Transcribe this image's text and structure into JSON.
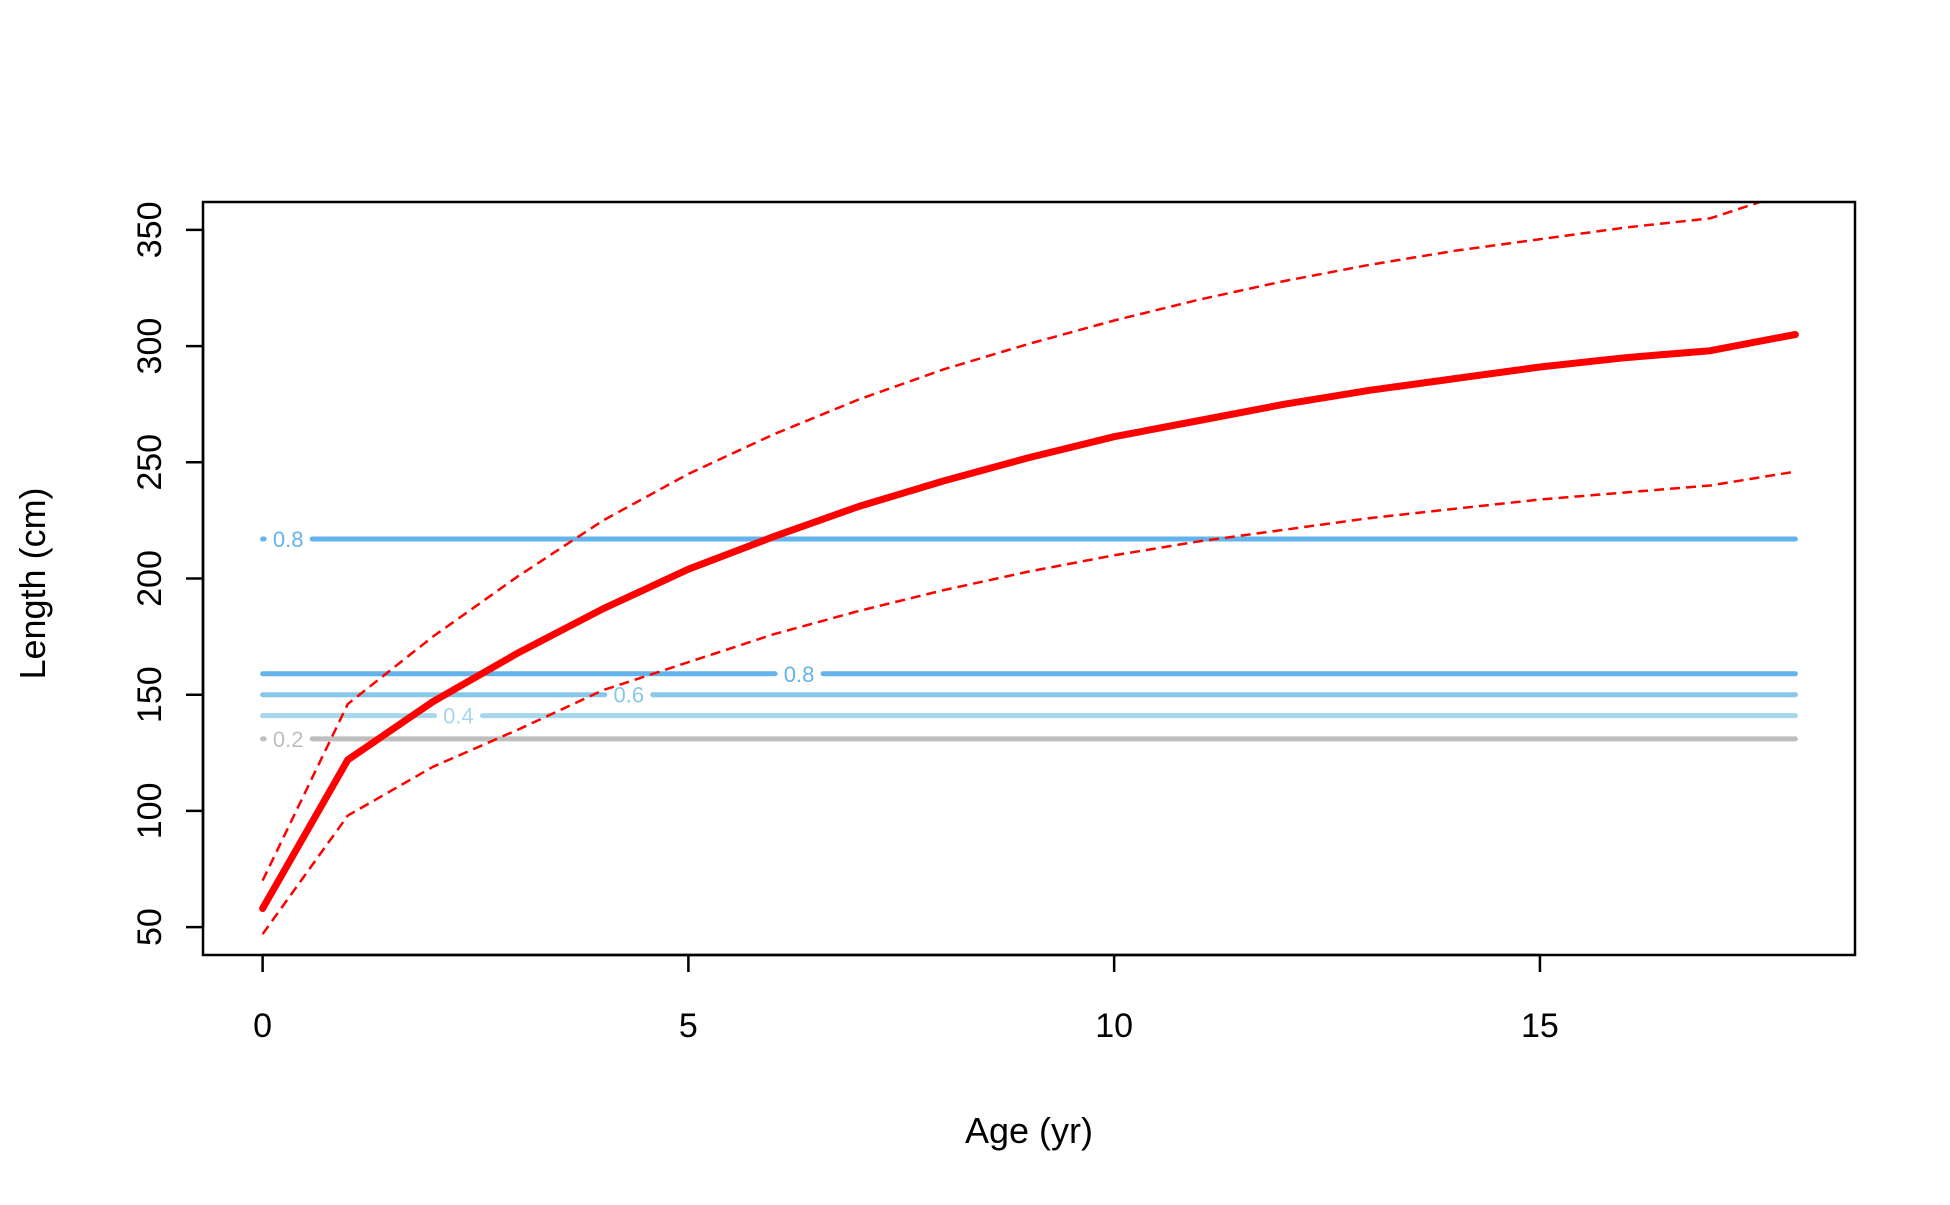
{
  "chart_data": {
    "type": "line",
    "title": "",
    "xlabel": "Age (yr)",
    "ylabel": "Length (cm)",
    "xlim": [
      -0.7,
      18.7
    ],
    "ylim": [
      38,
      362
    ],
    "x_ticks": [
      0,
      5,
      10,
      15
    ],
    "x_tick_labels": [
      "0",
      "5",
      "10",
      "15"
    ],
    "y_ticks": [
      50,
      100,
      150,
      200,
      250,
      300,
      350
    ],
    "y_tick_labels": [
      "50",
      "100",
      "150",
      "200",
      "250",
      "300",
      "350"
    ],
    "grid": false,
    "legend": "none",
    "series": [
      {
        "style": "solid-thick",
        "color": "#ff0000",
        "x": [
          0,
          1,
          2,
          3,
          4,
          5,
          6,
          7,
          8,
          9,
          10,
          11,
          12,
          13,
          14,
          15,
          16,
          17,
          18
        ],
        "y": [
          58,
          122,
          147,
          168,
          187,
          204,
          218,
          231,
          242,
          252,
          261,
          268,
          275,
          281,
          286,
          291,
          295,
          298,
          305
        ]
      },
      {
        "style": "dashed",
        "color": "#ff0000",
        "x": [
          0,
          1,
          2,
          3,
          4,
          5,
          6,
          7,
          8,
          9,
          10,
          11,
          12,
          13,
          14,
          15,
          16,
          17,
          18
        ],
        "y": [
          70,
          146,
          175,
          201,
          225,
          245,
          262,
          277,
          290,
          301,
          311,
          320,
          328,
          335,
          341,
          346,
          351,
          355,
          367
        ]
      },
      {
        "style": "dashed",
        "color": "#ff0000",
        "x": [
          0,
          1,
          2,
          3,
          4,
          5,
          6,
          7,
          8,
          9,
          10,
          11,
          12,
          13,
          14,
          15,
          16,
          17,
          18
        ],
        "y": [
          47,
          98,
          119,
          135,
          152,
          164,
          176,
          186,
          195,
          203,
          210,
          216,
          221,
          226,
          230,
          234,
          237,
          240,
          246
        ]
      }
    ],
    "contours": [
      {
        "label": "0.2",
        "y": 131,
        "x_start": 0,
        "x_end": 18,
        "label_x": 0.3,
        "color": "#bebebe"
      },
      {
        "label": "0.4",
        "y": 141,
        "x_start": 0,
        "x_end": 18,
        "label_x": 2.3,
        "color": "#a6d7ea"
      },
      {
        "label": "0.6",
        "y": 150,
        "x_start": 0,
        "x_end": 18,
        "label_x": 4.3,
        "color": "#87c7e8"
      },
      {
        "label": "0.8",
        "y": 159,
        "x_start": 0,
        "x_end": 18,
        "label_x": 6.3,
        "color": "#63b3ed"
      },
      {
        "label": "0.8",
        "y": 217,
        "x_start": 0,
        "x_end": 18,
        "label_x": 0.3,
        "color": "#63b3ed"
      }
    ]
  }
}
